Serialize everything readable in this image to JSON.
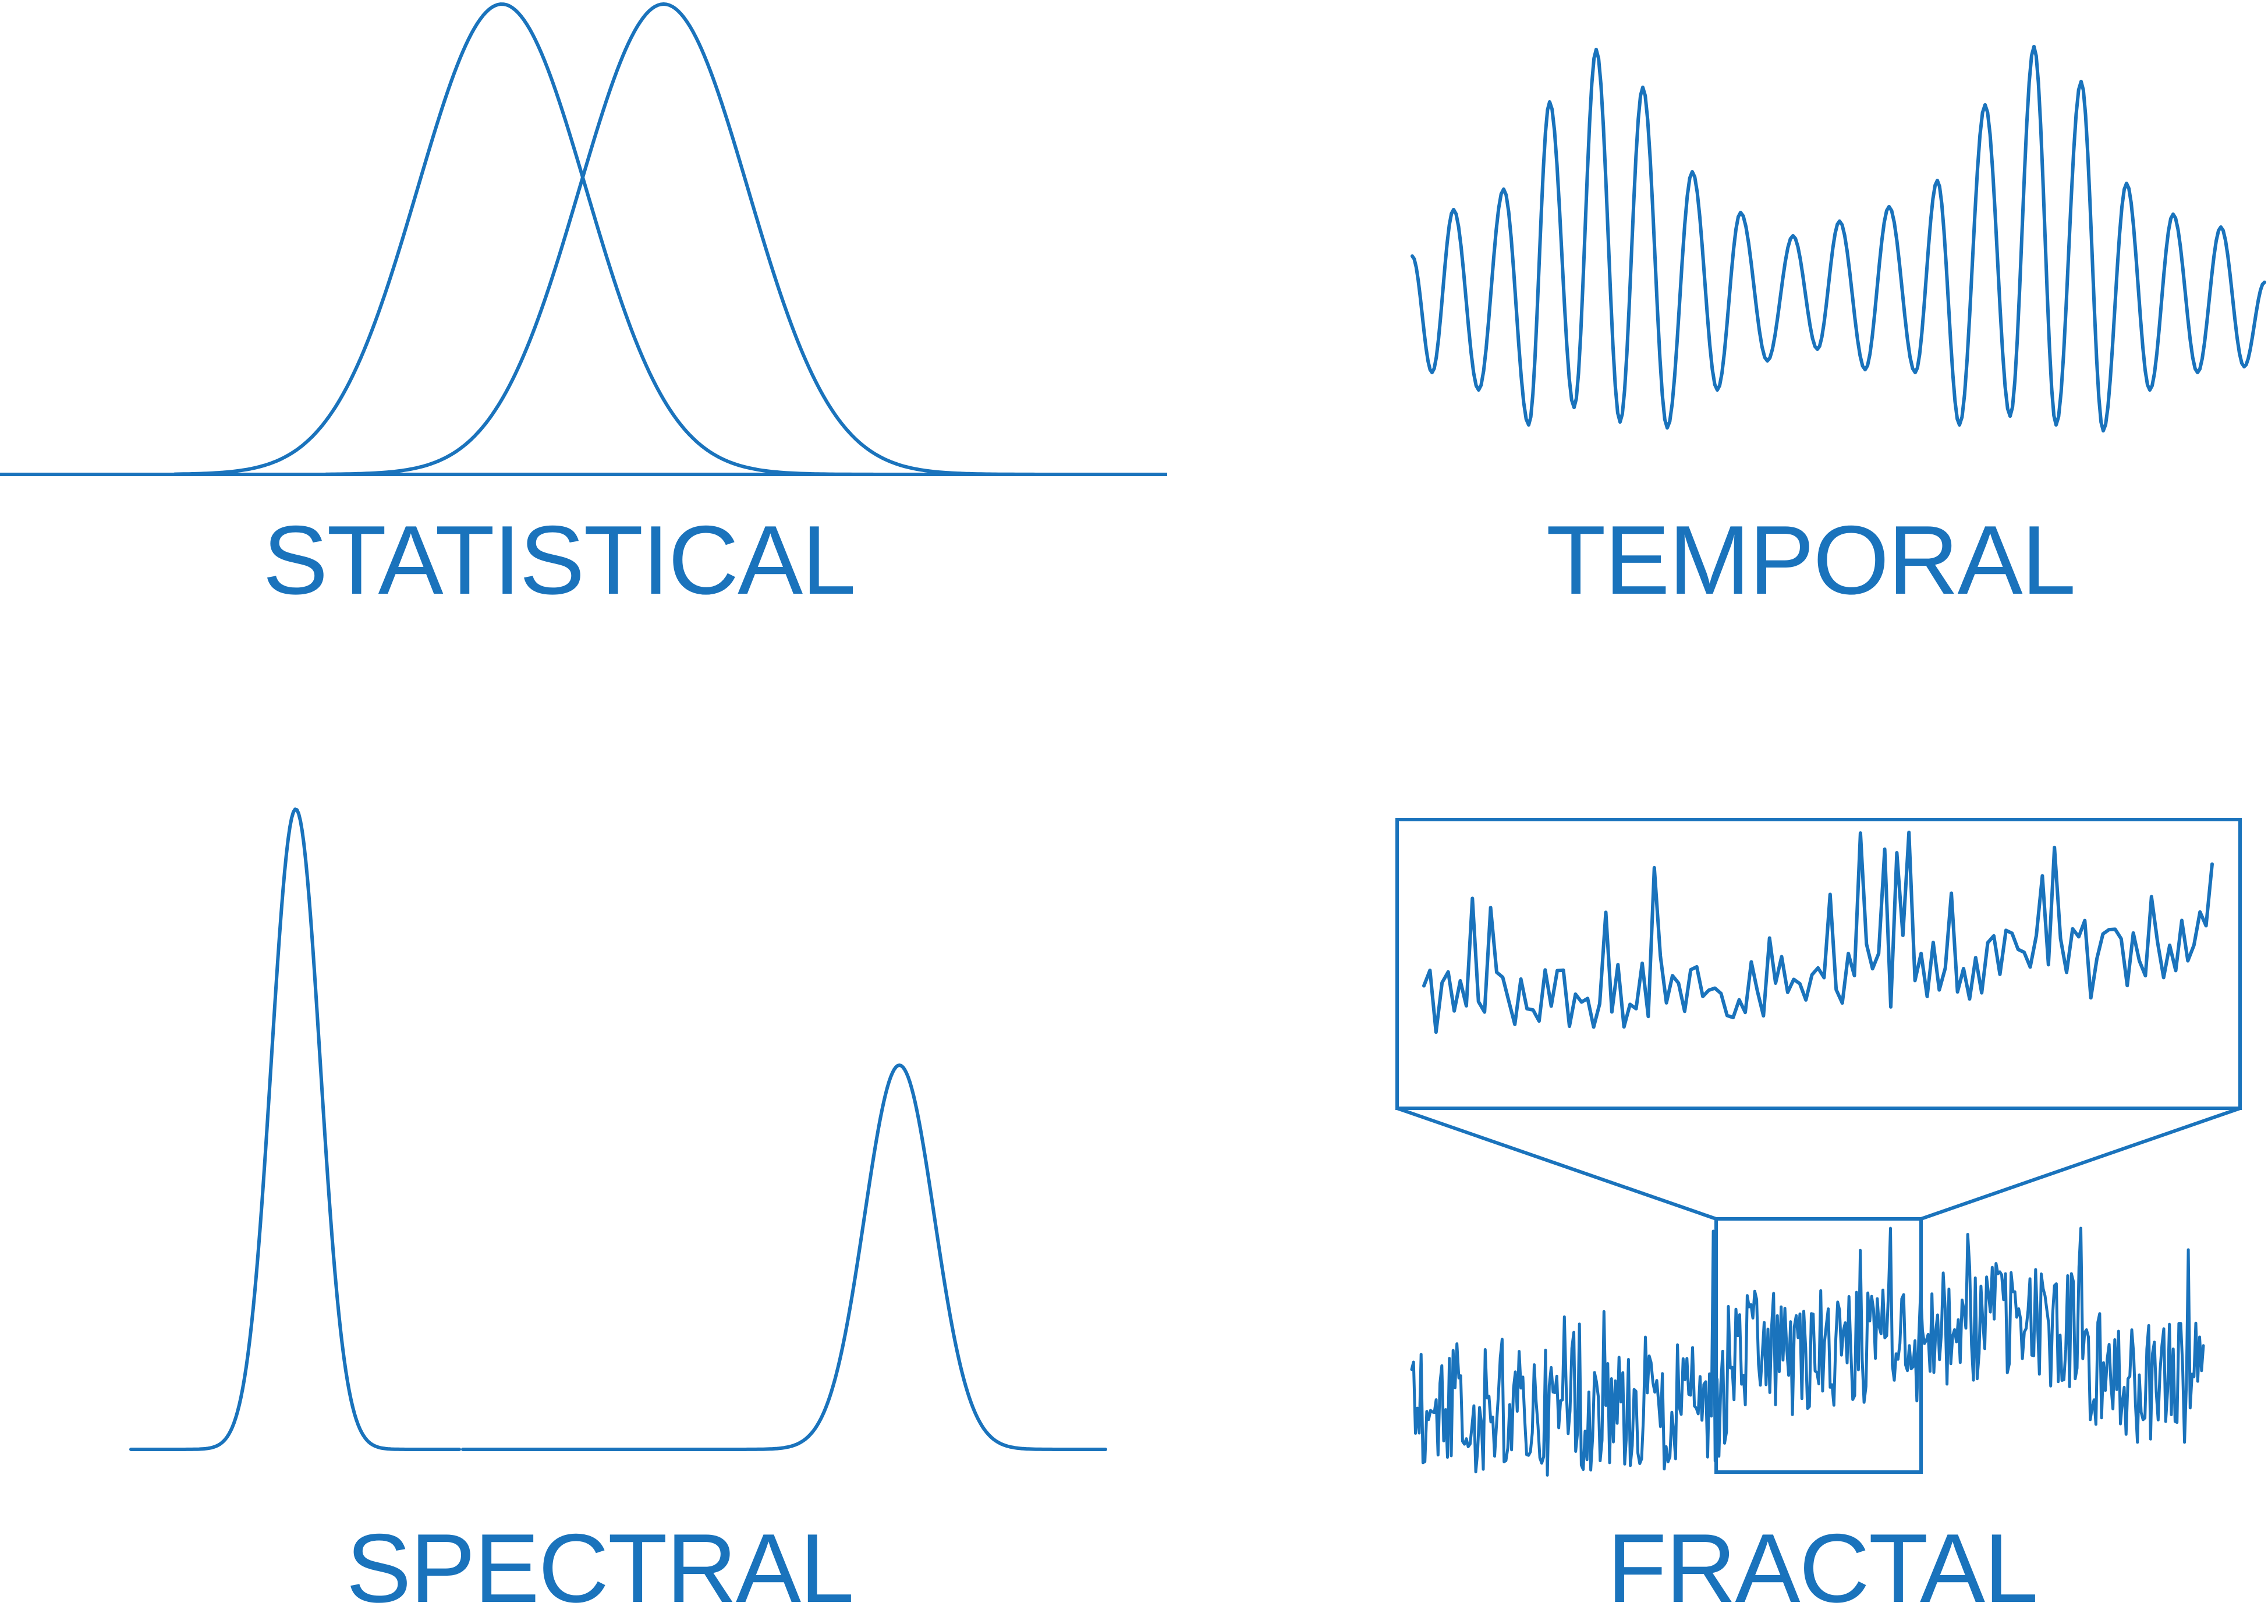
{
  "colors": {
    "accent": "#1a73bc",
    "background": "#ffffff"
  },
  "panels": {
    "statistical": {
      "label": "STATISTICAL",
      "kind": "two overlapping gaussian distributions"
    },
    "temporal": {
      "label": "TEMPORAL",
      "kind": "oscillating waveform with varying amplitude"
    },
    "spectral": {
      "label": "SPECTRAL",
      "kind": "two spectral peaks, tall narrow and shorter"
    },
    "fractal": {
      "label": "FRACTAL",
      "kind": "noisy signal with zoomed-in inset showing self-similarity"
    }
  }
}
